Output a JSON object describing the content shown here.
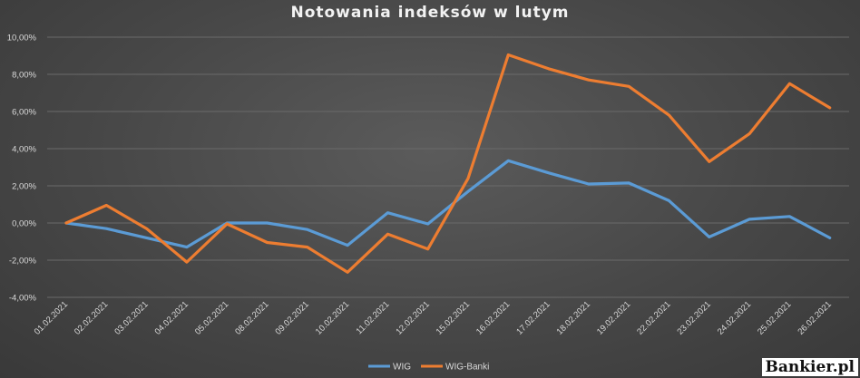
{
  "chart_data": {
    "type": "line",
    "title": "Notowania indeksów w lutym",
    "categories": [
      "01.02.2021",
      "02.02.2021",
      "03.02.2021",
      "04.02.2021",
      "05.02.2021",
      "08.02.2021",
      "09.02.2021",
      "10.02.2021",
      "11.02.2021",
      "12.02.2021",
      "15.02.2021",
      "16.02.2021",
      "17.02.2021",
      "18.02.2021",
      "19.02.2021",
      "22.02.2021",
      "23.02.2021",
      "24.02.2021",
      "25.02.2021",
      "26.02.2021"
    ],
    "series": [
      {
        "name": "WIG",
        "color": "#5b9bd5",
        "values": [
          0.0,
          -0.3,
          -0.8,
          -1.3,
          0.0,
          0.0,
          -0.35,
          -1.2,
          0.55,
          -0.05,
          1.7,
          3.35,
          2.7,
          2.1,
          2.15,
          1.2,
          -0.75,
          0.2,
          0.35,
          -0.8
        ]
      },
      {
        "name": "WIG-Banki",
        "color": "#ed7d31",
        "values": [
          0.0,
          0.95,
          -0.3,
          -2.1,
          -0.05,
          -1.05,
          -1.3,
          -2.65,
          -0.6,
          -1.4,
          2.4,
          9.05,
          8.3,
          7.7,
          7.35,
          5.8,
          3.3,
          4.8,
          7.5,
          6.2
        ]
      }
    ],
    "ylim": [
      -4,
      10
    ],
    "yticks": [
      -4,
      -2,
      0,
      2,
      4,
      6,
      8,
      10
    ],
    "ytick_labels": [
      "-4,00%",
      "-2,00%",
      "0,00%",
      "2,00%",
      "4,00%",
      "6,00%",
      "8,00%",
      "10,00%"
    ],
    "grid": true,
    "legend_position": "bottom-center",
    "xlabel": "",
    "ylabel": ""
  },
  "watermark": "Bankier.pl"
}
